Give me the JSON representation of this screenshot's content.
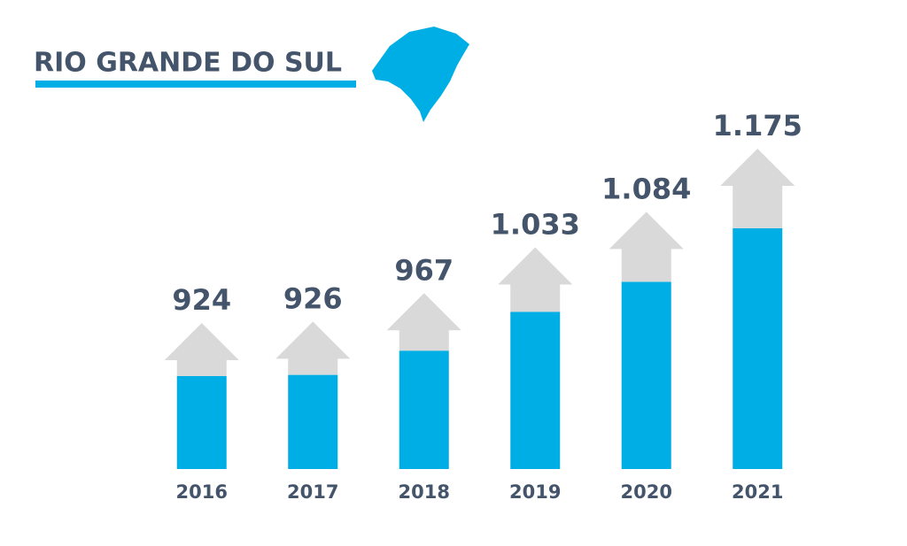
{
  "chart_data": {
    "type": "bar",
    "title": "RIO GRANDE DO SUL",
    "categories": [
      "2016",
      "2017",
      "2018",
      "2019",
      "2020",
      "2021"
    ],
    "values": [
      924,
      926,
      967,
      1033,
      1084,
      1175
    ],
    "value_labels": [
      "924",
      "926",
      "967",
      "1.033",
      "1.084",
      "1.175"
    ],
    "color": "#00aee6",
    "arrow_color": "#d9d9d9"
  }
}
